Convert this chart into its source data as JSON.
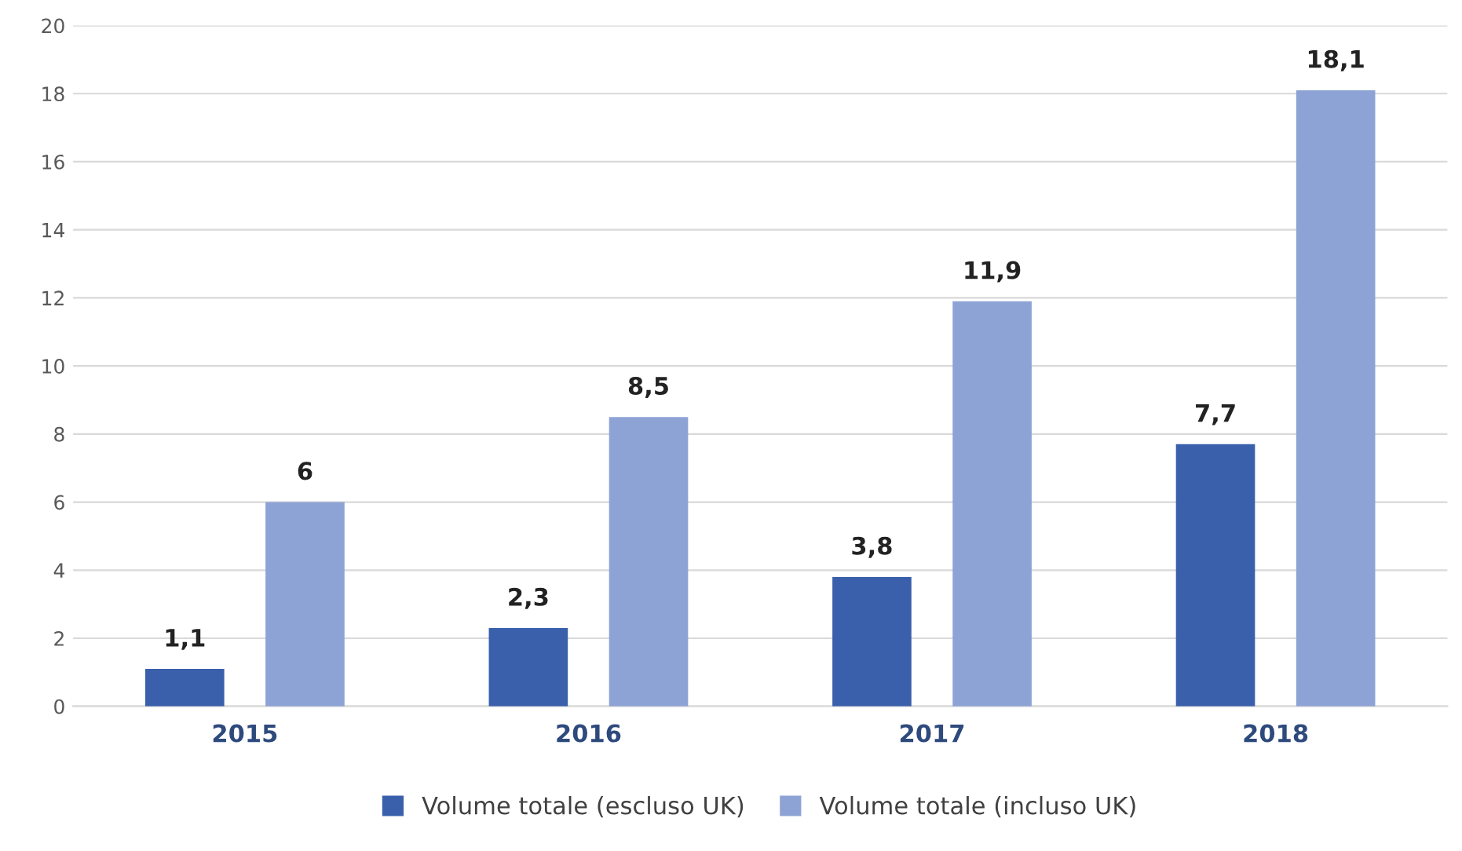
{
  "chart_data": {
    "type": "bar",
    "categories": [
      "2015",
      "2016",
      "2017",
      "2018"
    ],
    "series": [
      {
        "name": "Volume totale (escluso UK)",
        "color": "#3a60ab",
        "values": [
          1.1,
          2.3,
          3.8,
          7.7
        ],
        "value_labels": [
          "1,1",
          "2,3",
          "3,8",
          "7,7"
        ]
      },
      {
        "name": "Volume totale (incluso UK)",
        "color": "#8ea3d5",
        "values": [
          6,
          8.5,
          11.9,
          18.1
        ],
        "value_labels": [
          "6",
          "8,5",
          "11,9",
          "18,1"
        ]
      }
    ],
    "ylim": [
      0,
      20
    ],
    "yticks": [
      0,
      2,
      4,
      6,
      8,
      10,
      12,
      14,
      16,
      18,
      20
    ],
    "grid": "y",
    "legend": "bottom"
  }
}
